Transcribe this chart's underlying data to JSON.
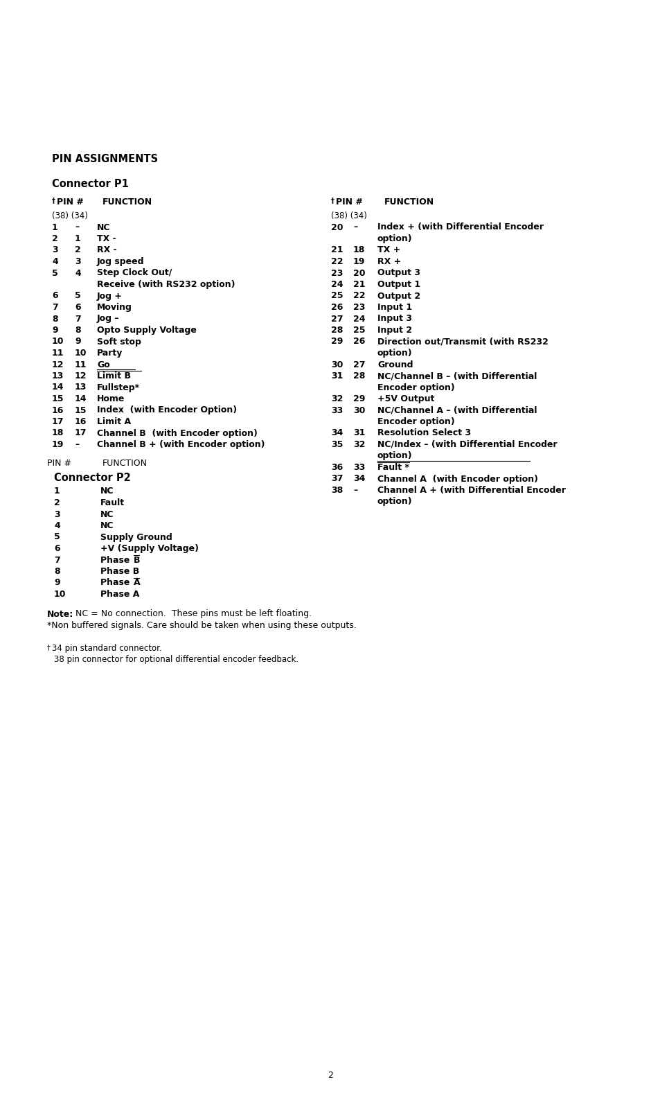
{
  "bg_color": "#ffffff",
  "text_color": "#000000",
  "title": "PIN ASSIGNMENTS",
  "connector_p1_title": "Connector P1",
  "connector_p2_title": "Connector P2",
  "p1_left_rows": [
    [
      "(38) (34)",
      "",
      ""
    ],
    [
      "1",
      "–",
      "NC"
    ],
    [
      "2",
      "1",
      "TX -"
    ],
    [
      "3",
      "2",
      "RX -"
    ],
    [
      "4",
      "3",
      "Jog speed"
    ],
    [
      "5",
      "4",
      "Step Clock Out/"
    ],
    [
      "",
      "",
      "Receive (with RS232 option)"
    ],
    [
      "6",
      "5",
      "Jog +"
    ],
    [
      "7",
      "6",
      "Moving"
    ],
    [
      "8",
      "7",
      "Jog –"
    ],
    [
      "9",
      "8",
      "Opto Supply Voltage"
    ],
    [
      "10",
      "9",
      "Soft stop"
    ],
    [
      "11",
      "10",
      "Party"
    ],
    [
      "12",
      "11",
      "Go"
    ],
    [
      "13",
      "12",
      "Limit B"
    ],
    [
      "14",
      "13",
      "Fullstep*"
    ],
    [
      "15",
      "14",
      "Home"
    ],
    [
      "16",
      "15",
      "Index  (with Encoder Option)"
    ],
    [
      "17",
      "16",
      "Limit A"
    ],
    [
      "18",
      "17",
      "Channel B  (with Encoder option)"
    ],
    [
      "19",
      "–",
      "Channel B + (with Encoder option)"
    ]
  ],
  "p1_right_rows": [
    [
      "(38) (34)",
      "",
      ""
    ],
    [
      "20",
      "–",
      "Index + (with Differential Encoder",
      "option)"
    ],
    [
      "21",
      "18",
      "TX +",
      ""
    ],
    [
      "22",
      "19",
      "RX +",
      ""
    ],
    [
      "23",
      "20",
      "Output 3",
      ""
    ],
    [
      "24",
      "21",
      "Output 1",
      ""
    ],
    [
      "25",
      "22",
      "Output 2",
      ""
    ],
    [
      "26",
      "23",
      "Input 1",
      ""
    ],
    [
      "27",
      "24",
      "Input 3",
      ""
    ],
    [
      "28",
      "25",
      "Input 2",
      ""
    ],
    [
      "29",
      "26",
      "Direction out/Transmit (with RS232",
      "option)"
    ],
    [
      "30",
      "27",
      "Ground",
      ""
    ],
    [
      "31",
      "28",
      "NC/Channel B – (with Differential",
      "Encoder option)"
    ],
    [
      "32",
      "29",
      "+5V Output",
      ""
    ],
    [
      "33",
      "30",
      "NC/Channel A – (with Differential",
      "Encoder option)"
    ],
    [
      "34",
      "31",
      "Resolution Select 3",
      ""
    ],
    [
      "35",
      "32",
      "NC/Index – (with Differential Encoder",
      "option)"
    ],
    [
      "36",
      "33",
      "Fault *",
      ""
    ],
    [
      "37",
      "34",
      "Channel A  (with Encoder option)",
      ""
    ],
    [
      "38",
      "–",
      "Channel A + (with Differential Encoder",
      "option)"
    ]
  ],
  "p2_rows": [
    [
      "1",
      "NC",
      false,
      false
    ],
    [
      "2",
      "Fault",
      false,
      false
    ],
    [
      "3",
      "NC",
      false,
      false
    ],
    [
      "4",
      "NC",
      false,
      false
    ],
    [
      "5",
      "Supply Ground",
      false,
      false
    ],
    [
      "6",
      "+V (Supply Voltage)",
      false,
      false
    ],
    [
      "7",
      "Phase B",
      true,
      false
    ],
    [
      "8",
      "Phase B",
      false,
      false
    ],
    [
      "9",
      "Phase A",
      false,
      true
    ],
    [
      "10",
      "Phase A",
      false,
      false
    ]
  ],
  "page_number": "2"
}
